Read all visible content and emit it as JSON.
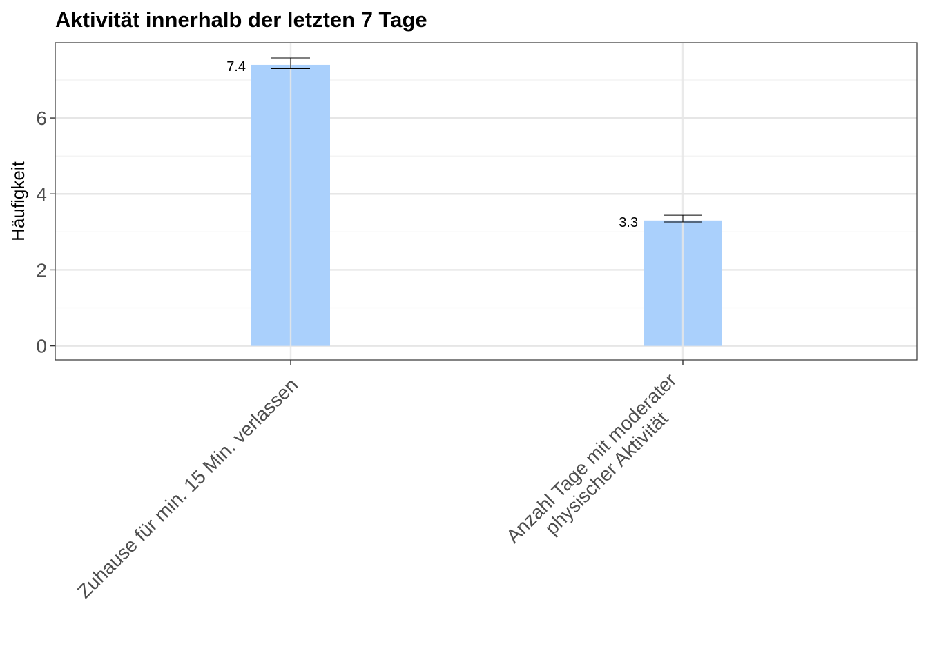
{
  "chart_data": {
    "type": "bar",
    "title": "Aktivität innerhalb der letzten 7 Tage",
    "xlabel": "",
    "ylabel": "Häufigkeit",
    "categories": [
      [
        "Zuhause für min. 15 Min. verlassen"
      ],
      [
        "Anzahl Tage mit moderater",
        "physischer Aktivität"
      ]
    ],
    "values": [
      7.4,
      3.3
    ],
    "value_labels": [
      "7.4",
      "3.3"
    ],
    "error_bars": [
      {
        "low": 7.3,
        "high": 7.58
      },
      {
        "low": 3.26,
        "high": 3.44
      }
    ],
    "ylim": [
      -0.37,
      7.98
    ],
    "yticks": [
      0,
      2,
      4,
      6
    ],
    "grid": true,
    "legend": "none",
    "colors": {
      "bar": "#aad0fc",
      "error_bar": "#000000",
      "grid_major": "#e6e6e6",
      "grid_minor": "#f0f0f0",
      "panel_border": "#333333"
    }
  }
}
